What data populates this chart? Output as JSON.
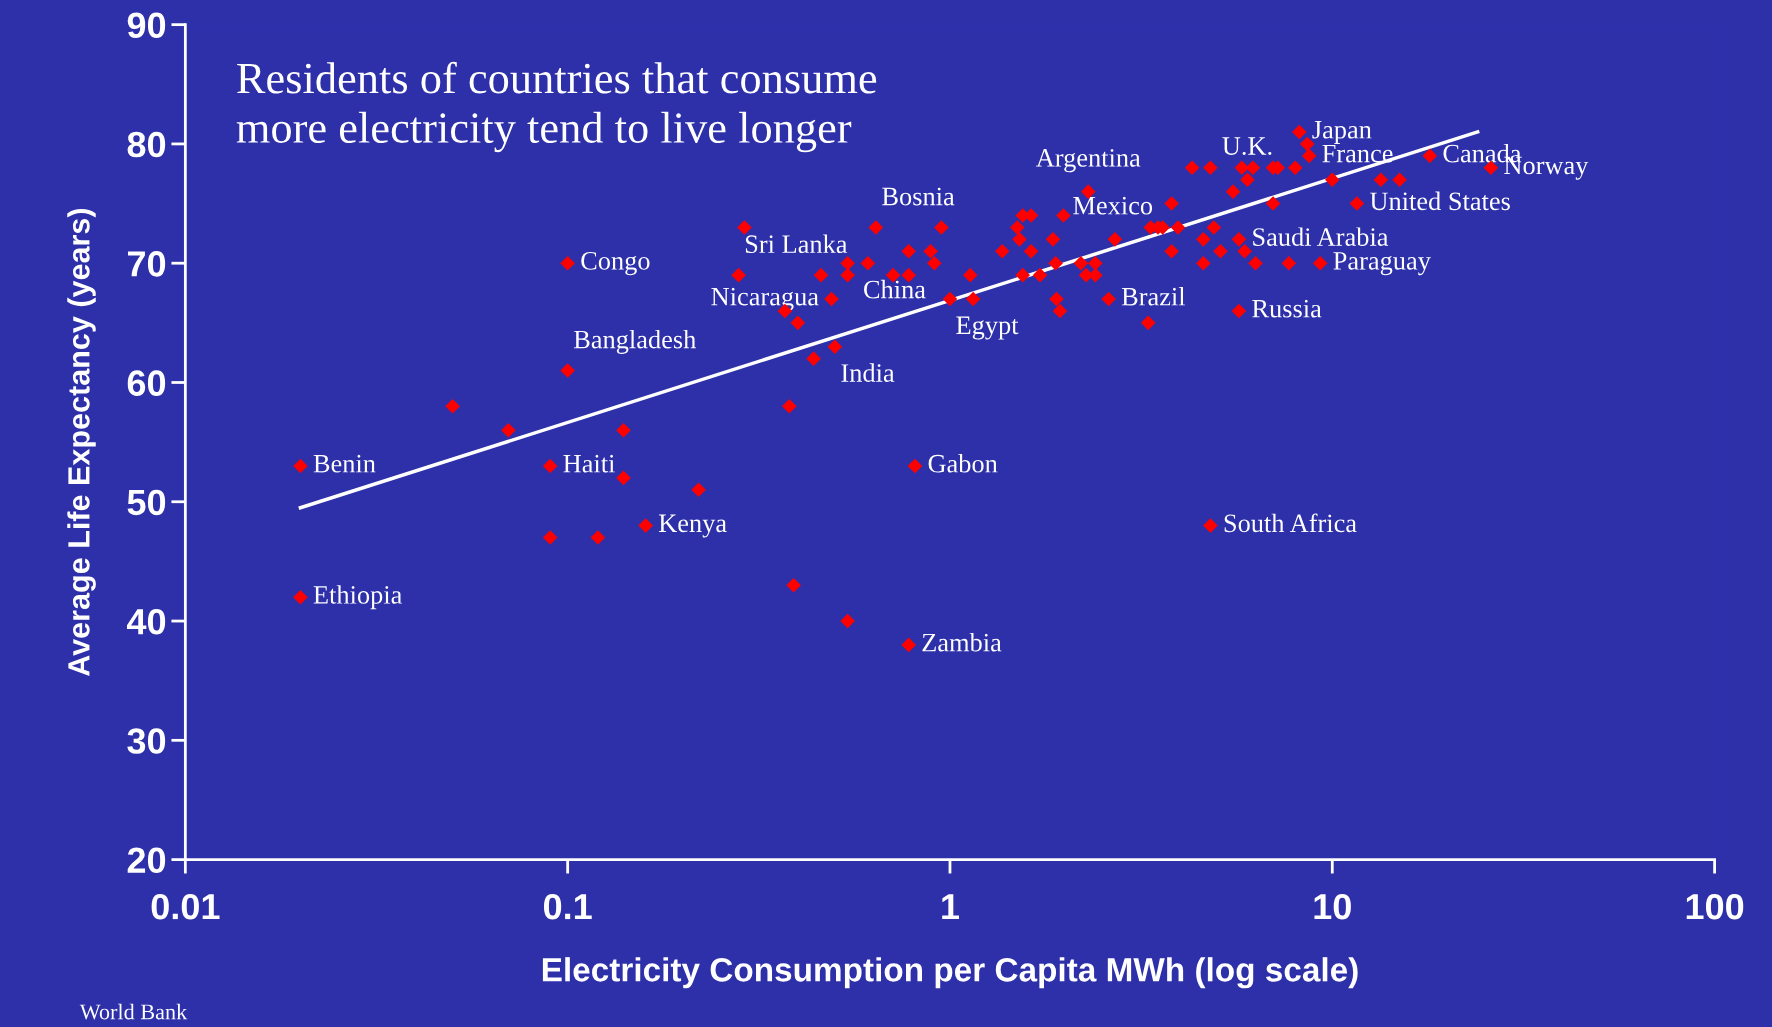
{
  "chart_data": {
    "type": "scatter",
    "title": "Residents of countries that consume\nmore electricity tend to live longer",
    "xlabel": "Electricity Consumption per Capita MWh (log scale)",
    "ylabel": "Average Life Expectancy (years)",
    "log": "x",
    "xlim": [
      0.01,
      100
    ],
    "xticks": [
      0.01,
      0.1,
      1,
      10,
      100
    ],
    "ylim": [
      20,
      90
    ],
    "yticks": [
      20,
      30,
      40,
      50,
      60,
      70,
      80,
      90
    ],
    "grid": false,
    "legend": false,
    "marker": "diamond",
    "series": [
      {
        "color": "#ff0000",
        "x": [
          0.02,
          0.02,
          0.09,
          0.1,
          0.1,
          0.16,
          0.28,
          0.49,
          0.5,
          0.64,
          0.81,
          0.78,
          0.91,
          1.0,
          1.86,
          2.3,
          2.6,
          4.8,
          5.7,
          5.7,
          9.3,
          6.0,
          8.2,
          8.7,
          11.6,
          18,
          26,
          0.05,
          0.07,
          0.09,
          0.12,
          0.14,
          0.14,
          0.22,
          0.38,
          0.39,
          0.54,
          0.37,
          0.4,
          0.44,
          0.29,
          0.46,
          0.54,
          0.54,
          0.61,
          0.71,
          0.78,
          0.78,
          0.89,
          0.95,
          1.13,
          1.15,
          1.37,
          1.5,
          1.55,
          1.63,
          1.52,
          1.63,
          1.55,
          1.72,
          1.98,
          1.89,
          1.9,
          1.94,
          2.2,
          2.27,
          2.4,
          2.4,
          2.7,
          3.3,
          3.35,
          3.5,
          3.6,
          3.8,
          3.95,
          3.8,
          4.3,
          4.8,
          4.6,
          4.9,
          4.6,
          5.1,
          5.5,
          5.8,
          6.2,
          5.9,
          6.3,
          7.0,
          7.2,
          7.0,
          7.7,
          8.0,
          8.6,
          10,
          13.4,
          15
        ],
        "values": [
          53,
          42,
          53,
          70,
          61,
          48,
          69,
          67,
          63,
          73,
          53,
          38,
          70,
          67,
          72,
          76,
          67,
          48,
          72,
          66,
          70,
          77,
          81,
          79,
          75,
          79,
          78,
          58,
          56,
          47,
          47,
          56,
          52,
          51,
          58,
          43,
          40,
          66,
          65,
          62,
          73,
          69,
          69,
          70,
          70,
          69,
          69,
          71,
          71,
          73,
          69,
          67,
          71,
          73,
          74,
          74,
          72,
          71,
          69,
          69,
          74,
          70,
          67,
          66,
          70,
          69,
          69,
          70,
          72,
          65,
          73,
          73,
          73,
          71,
          73,
          75,
          78,
          78,
          72,
          73,
          70,
          71,
          76,
          78,
          78,
          71,
          70,
          78,
          78,
          75,
          70,
          78,
          80,
          77,
          77,
          77
        ]
      },
      {
        "type": "line",
        "color": "#ffffff",
        "marker": "none",
        "x": [
          0.02,
          24
        ],
        "values": [
          49.5,
          81
        ]
      }
    ],
    "annotations": [
      {
        "text": "Benin",
        "x": 0.02,
        "y": 53
      },
      {
        "text": "Ethiopia",
        "x": 0.02,
        "y": 42
      },
      {
        "text": "Haiti",
        "x": 0.09,
        "y": 53
      },
      {
        "text": "Congo",
        "x": 0.1,
        "y": 70
      },
      {
        "text": "Bangladesh",
        "x": 0.1,
        "y": 61
      },
      {
        "text": "Kenya",
        "x": 0.16,
        "y": 48
      },
      {
        "text": "Sri Lanka",
        "x": 0.28,
        "y": 69
      },
      {
        "text": "Nicaragua",
        "x": 0.49,
        "y": 67
      },
      {
        "text": "India",
        "x": 0.5,
        "y": 63
      },
      {
        "text": "Bosnia",
        "x": 0.64,
        "y": 73
      },
      {
        "text": "Gabon",
        "x": 0.81,
        "y": 53
      },
      {
        "text": "Zambia",
        "x": 0.78,
        "y": 38
      },
      {
        "text": "China",
        "x": 0.91,
        "y": 70
      },
      {
        "text": "Egypt",
        "x": 1.0,
        "y": 67
      },
      {
        "text": "Mexico",
        "x": 1.86,
        "y": 72
      },
      {
        "text": "Argentina",
        "x": 2.3,
        "y": 76
      },
      {
        "text": "Brazil",
        "x": 2.6,
        "y": 67
      },
      {
        "text": "South Africa",
        "x": 4.8,
        "y": 48
      },
      {
        "text": "Saudi Arabia",
        "x": 5.7,
        "y": 72
      },
      {
        "text": "Russia",
        "x": 5.7,
        "y": 66
      },
      {
        "text": "Paraguay",
        "x": 9.3,
        "y": 70
      },
      {
        "text": "U.K.",
        "x": 6.0,
        "y": 77
      },
      {
        "text": "Japan",
        "x": 8.2,
        "y": 81
      },
      {
        "text": "France",
        "x": 8.7,
        "y": 79
      },
      {
        "text": "United States",
        "x": 11.6,
        "y": 75
      },
      {
        "text": "Canada",
        "x": 18,
        "y": 79
      },
      {
        "text": "Norway",
        "x": 26,
        "y": 78
      },
      "World Bank"
    ]
  }
}
